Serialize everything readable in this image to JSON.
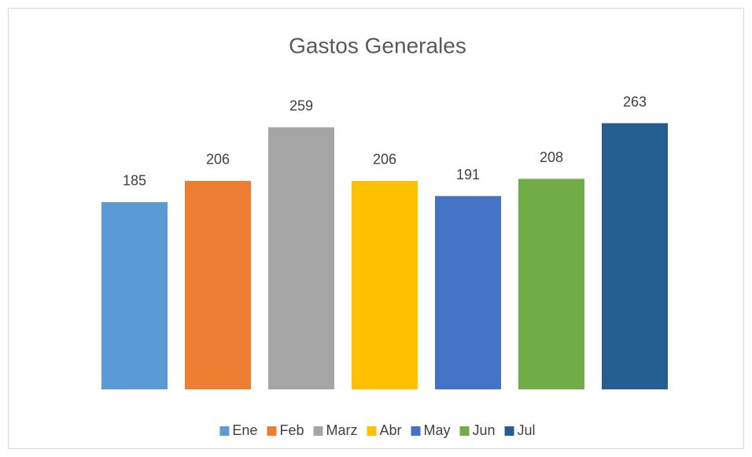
{
  "chart_data": {
    "type": "bar",
    "title": "Gastos Generales",
    "categories": [
      "Ene",
      "Feb",
      "Marz",
      "Abr",
      "May",
      "Jun",
      "Jul"
    ],
    "values": [
      185,
      206,
      259,
      206,
      191,
      208,
      263
    ],
    "colors": [
      "#5b9bd5",
      "#ed7d31",
      "#a5a5a5",
      "#ffc000",
      "#4472c4",
      "#70ad47",
      "#255e91"
    ],
    "ylim": [
      0,
      300
    ],
    "legend": "bottom"
  }
}
